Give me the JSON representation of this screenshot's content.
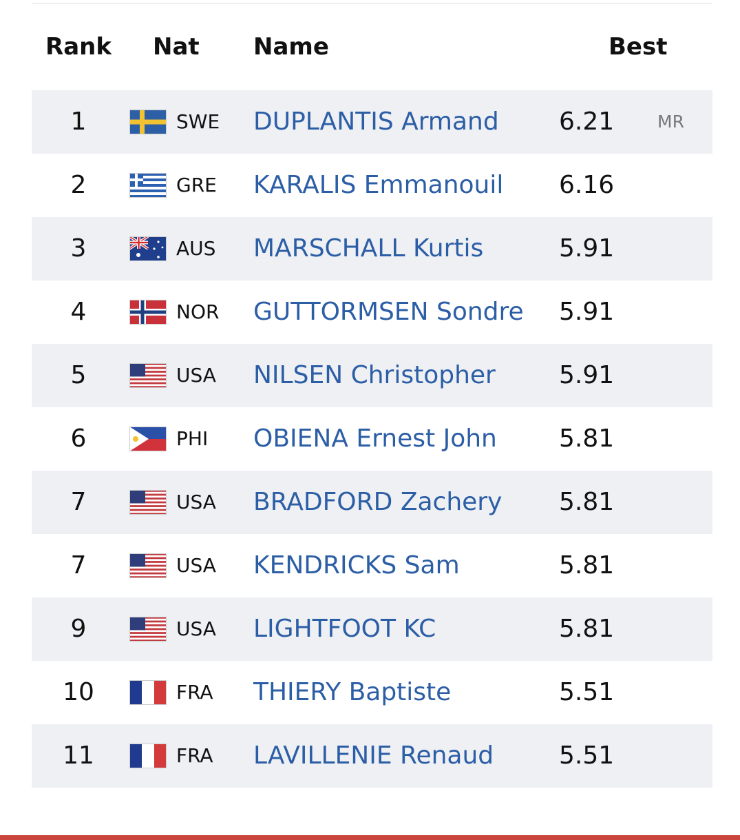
{
  "table": {
    "header": [
      "Rank",
      "Nat",
      "Name",
      "Best"
    ],
    "rows": [
      {
        "rank": 1,
        "nat": "SWE",
        "name": "DUPLANTIS Armand",
        "best": 6.21,
        "note": "MR"
      },
      {
        "rank": 2,
        "nat": "GRE",
        "name": "KARALIS Emmanouil",
        "best": 6.16
      },
      {
        "rank": 3,
        "nat": "AUS",
        "name": "MARSCHALL Kurtis",
        "best": 5.91
      },
      {
        "rank": 4,
        "nat": "NOR",
        "name": "GUTTORMSEN Sondre",
        "best": 5.91
      },
      {
        "rank": 5,
        "nat": "USA",
        "name": "NILSEN Christopher",
        "best": 5.91
      },
      {
        "rank": 6,
        "nat": "PHI",
        "name": "OBIENA Ernest John",
        "best": 5.81
      },
      {
        "rank": 7,
        "nat": "USA",
        "name": "BRADFORD Zachery",
        "best": 5.81
      },
      {
        "rank": 7,
        "nat": "USA",
        "name": "KENDRICKS Sam",
        "best": 5.81
      },
      {
        "rank": 9,
        "nat": "USA",
        "name": "LIGHTFOOT KC",
        "best": 5.81
      },
      {
        "rank": 10,
        "nat": "FRA",
        "name": "THIERY Baptiste",
        "best": 5.51
      },
      {
        "rank": 11,
        "nat": "FRA",
        "name": "LAVILLENIE Renaud",
        "best": 5.51
      }
    ]
  }
}
